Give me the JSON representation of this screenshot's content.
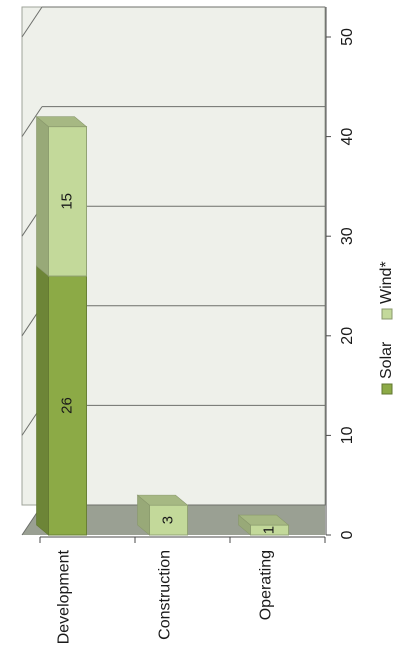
{
  "chart_data": {
    "type": "bar",
    "orientation": "stacked-3d-rotated",
    "title": "",
    "xlabel": "",
    "ylabel": "",
    "categories": [
      "Development",
      "Construction",
      "Operating"
    ],
    "series": [
      {
        "name": "Solar",
        "values": [
          26,
          0,
          0
        ],
        "color": "#8caa46"
      },
      {
        "name": "Wind*",
        "values": [
          15,
          3,
          1
        ],
        "color": "#c3d99a"
      }
    ],
    "ylim": [
      0,
      50
    ],
    "yticks": [
      "0",
      "10",
      "20",
      "30",
      "40",
      "50"
    ],
    "grid": true,
    "legend": "right",
    "colors": {
      "wall": "#eef0ea",
      "floor": "#9aa093",
      "side_wall": "#c0c3bb",
      "grid": "#6d6f6b"
    }
  }
}
